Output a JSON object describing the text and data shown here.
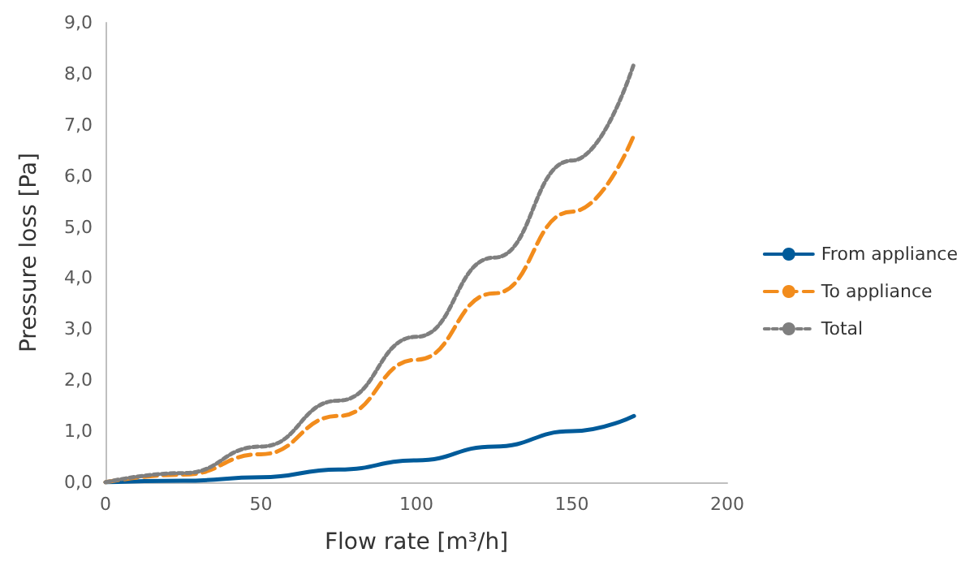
{
  "chart_data": {
    "type": "line",
    "xlabel": "Flow rate [m³/h]",
    "ylabel": "Pressure loss [Pa]",
    "x": [
      0,
      25,
      50,
      75,
      100,
      125,
      150,
      170
    ],
    "series": [
      {
        "name": "From appliance",
        "color": "#005b9a",
        "line_style": "solid",
        "values": [
          0,
          0.03,
          0.1,
          0.25,
          0.43,
          0.7,
          1.0,
          1.3
        ]
      },
      {
        "name": "To appliance",
        "color": "#f28c1c",
        "line_style": "dashed",
        "values": [
          0,
          0.15,
          0.55,
          1.3,
          2.4,
          3.7,
          5.3,
          6.8
        ]
      },
      {
        "name": "Total",
        "color": "#7f7f7f",
        "line_style": "dotted",
        "values": [
          0,
          0.18,
          0.7,
          1.6,
          2.85,
          4.4,
          6.3,
          8.2
        ]
      }
    ],
    "xlim": [
      0,
      200
    ],
    "xticks": [
      0,
      50,
      100,
      150,
      200
    ],
    "ylim": [
      0,
      9
    ],
    "yticks": [
      {
        "value": 0,
        "label": "0,0"
      },
      {
        "value": 1,
        "label": "1,0"
      },
      {
        "value": 2,
        "label": "2,0"
      },
      {
        "value": 3,
        "label": "3,0"
      },
      {
        "value": 4,
        "label": "4,0"
      },
      {
        "value": 5,
        "label": "5,0"
      },
      {
        "value": 6,
        "label": "6,0"
      },
      {
        "value": 7,
        "label": "7,0"
      },
      {
        "value": 8,
        "label": "8,0"
      },
      {
        "value": 9,
        "label": "9,0"
      }
    ],
    "grid": false,
    "legend": "right",
    "marker": "none"
  }
}
